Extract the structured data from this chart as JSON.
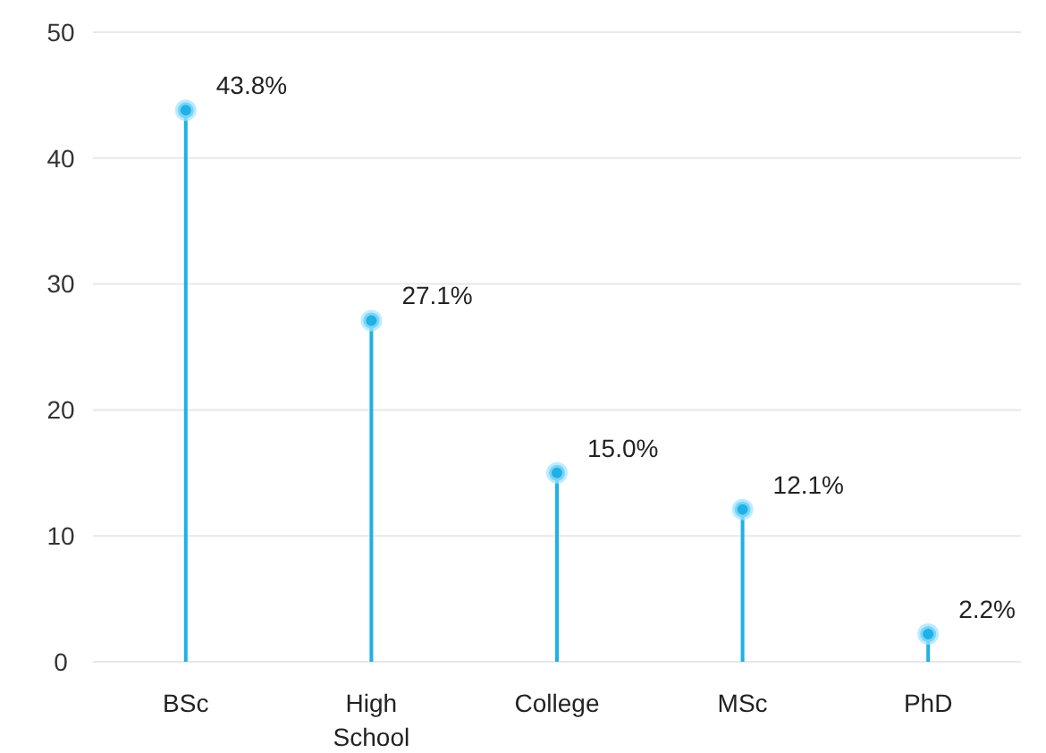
{
  "chart_data": {
    "type": "lollipop",
    "categories": [
      "BSc",
      "High School",
      "College",
      "MSc",
      "PhD"
    ],
    "values": [
      43.8,
      27.1,
      15.0,
      12.1,
      2.2
    ],
    "value_labels": [
      "43.8%",
      "27.1%",
      "15.0%",
      "12.1%",
      "2.2%"
    ],
    "color": "#1fb1e6",
    "ylim": [
      0,
      50
    ],
    "yticks": [
      0,
      10,
      20,
      30,
      40,
      50
    ],
    "grid": "y",
    "marker": "circle"
  }
}
